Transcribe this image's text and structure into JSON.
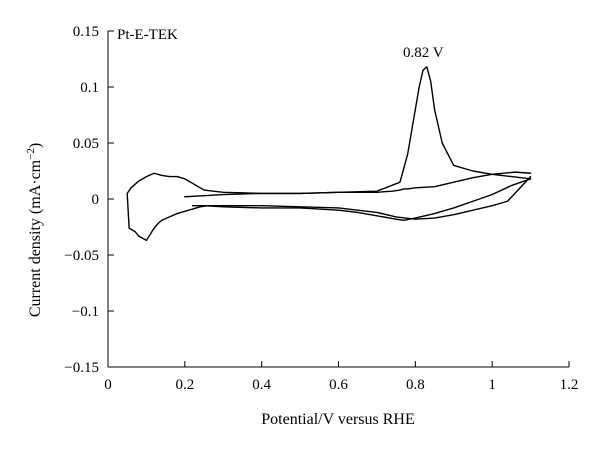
{
  "chart_data": {
    "type": "line",
    "title": "",
    "panel_label": "Pt-E-TEK",
    "xlabel": "Potential/V versus RHE",
    "ylabel": "Current density (mA·cm",
    "ylabel_sup": "−2",
    "ylabel_close": ")",
    "xlim": [
      0,
      1.2
    ],
    "ylim": [
      -0.15,
      0.15
    ],
    "x_ticks": [
      0,
      0.2,
      0.4,
      0.6,
      0.8,
      1.0,
      1.2
    ],
    "x_tick_labels": [
      "0",
      "0.2",
      "0.4",
      "0.6",
      "0.8",
      "1",
      "1.2"
    ],
    "y_ticks": [
      0.15,
      0.1,
      0.05,
      0,
      -0.05,
      -0.1,
      -0.15
    ],
    "y_tick_labels": [
      "0.15",
      "0.1",
      "0.05",
      "0",
      "−0.05",
      "−0.1",
      "−0.15"
    ],
    "grid": false,
    "legend": "none",
    "line_color": "#000000",
    "annotations": [
      {
        "text": "0.82 V",
        "x": 0.82,
        "y": 0.128
      }
    ],
    "series": [
      {
        "x": [
          0.2,
          0.25,
          0.3,
          0.4,
          0.5,
          0.6,
          0.7,
          0.76,
          0.78,
          0.8,
          0.81,
          0.82,
          0.83,
          0.84,
          0.85,
          0.87,
          0.9,
          0.95,
          1.0,
          1.05,
          1.1
        ],
        "y": [
          0.002,
          0.003,
          0.004,
          0.005,
          0.005,
          0.006,
          0.007,
          0.015,
          0.04,
          0.08,
          0.1,
          0.115,
          0.118,
          0.105,
          0.08,
          0.05,
          0.03,
          0.025,
          0.022,
          0.02,
          0.018
        ]
      },
      {
        "x": [
          1.1,
          1.06,
          1.0,
          0.95,
          0.9,
          0.85,
          0.8,
          0.78,
          0.77,
          0.76,
          0.74,
          0.7,
          0.6,
          0.5,
          0.4,
          0.3,
          0.25,
          0.24,
          0.22,
          0.2,
          0.18,
          0.16,
          0.14,
          0.12,
          0.1,
          0.09,
          0.08,
          0.07,
          0.06,
          0.05,
          0.055,
          0.07,
          0.08,
          0.1,
          0.12,
          0.13,
          0.14,
          0.16,
          0.18,
          0.19,
          0.2,
          0.21,
          0.22,
          0.23,
          0.24,
          0.26,
          0.3,
          0.4,
          0.5,
          0.6,
          0.7,
          0.75,
          0.8,
          0.85,
          0.9,
          0.95,
          1.0,
          1.04,
          1.1
        ],
        "y": [
          0.023,
          0.024,
          0.022,
          0.019,
          0.015,
          0.011,
          0.01,
          0.009,
          0.009,
          0.008,
          0.007,
          0.006,
          0.006,
          0.005,
          0.005,
          0.006,
          0.008,
          0.01,
          0.014,
          0.018,
          0.02,
          0.02,
          0.021,
          0.023,
          0.02,
          0.018,
          0.016,
          0.013,
          0.01,
          0.005,
          -0.026,
          -0.029,
          -0.033,
          -0.037,
          -0.026,
          -0.022,
          -0.019,
          -0.016,
          -0.013,
          -0.012,
          -0.011,
          -0.01,
          -0.009,
          -0.008,
          -0.007,
          -0.006,
          -0.006,
          -0.006,
          -0.007,
          -0.008,
          -0.012,
          -0.016,
          -0.018,
          -0.017,
          -0.014,
          -0.01,
          -0.006,
          -0.002,
          0.02
        ]
      },
      {
        "x": [
          1.1,
          1.05,
          1.0,
          0.95,
          0.9,
          0.85,
          0.8,
          0.77,
          0.75,
          0.7,
          0.65,
          0.6,
          0.5,
          0.4,
          0.3,
          0.25,
          0.22
        ],
        "y": [
          0.018,
          0.012,
          0.004,
          -0.002,
          -0.008,
          -0.013,
          -0.017,
          -0.019,
          -0.018,
          -0.015,
          -0.012,
          -0.01,
          -0.008,
          -0.008,
          -0.007,
          -0.006,
          -0.006
        ]
      }
    ]
  }
}
